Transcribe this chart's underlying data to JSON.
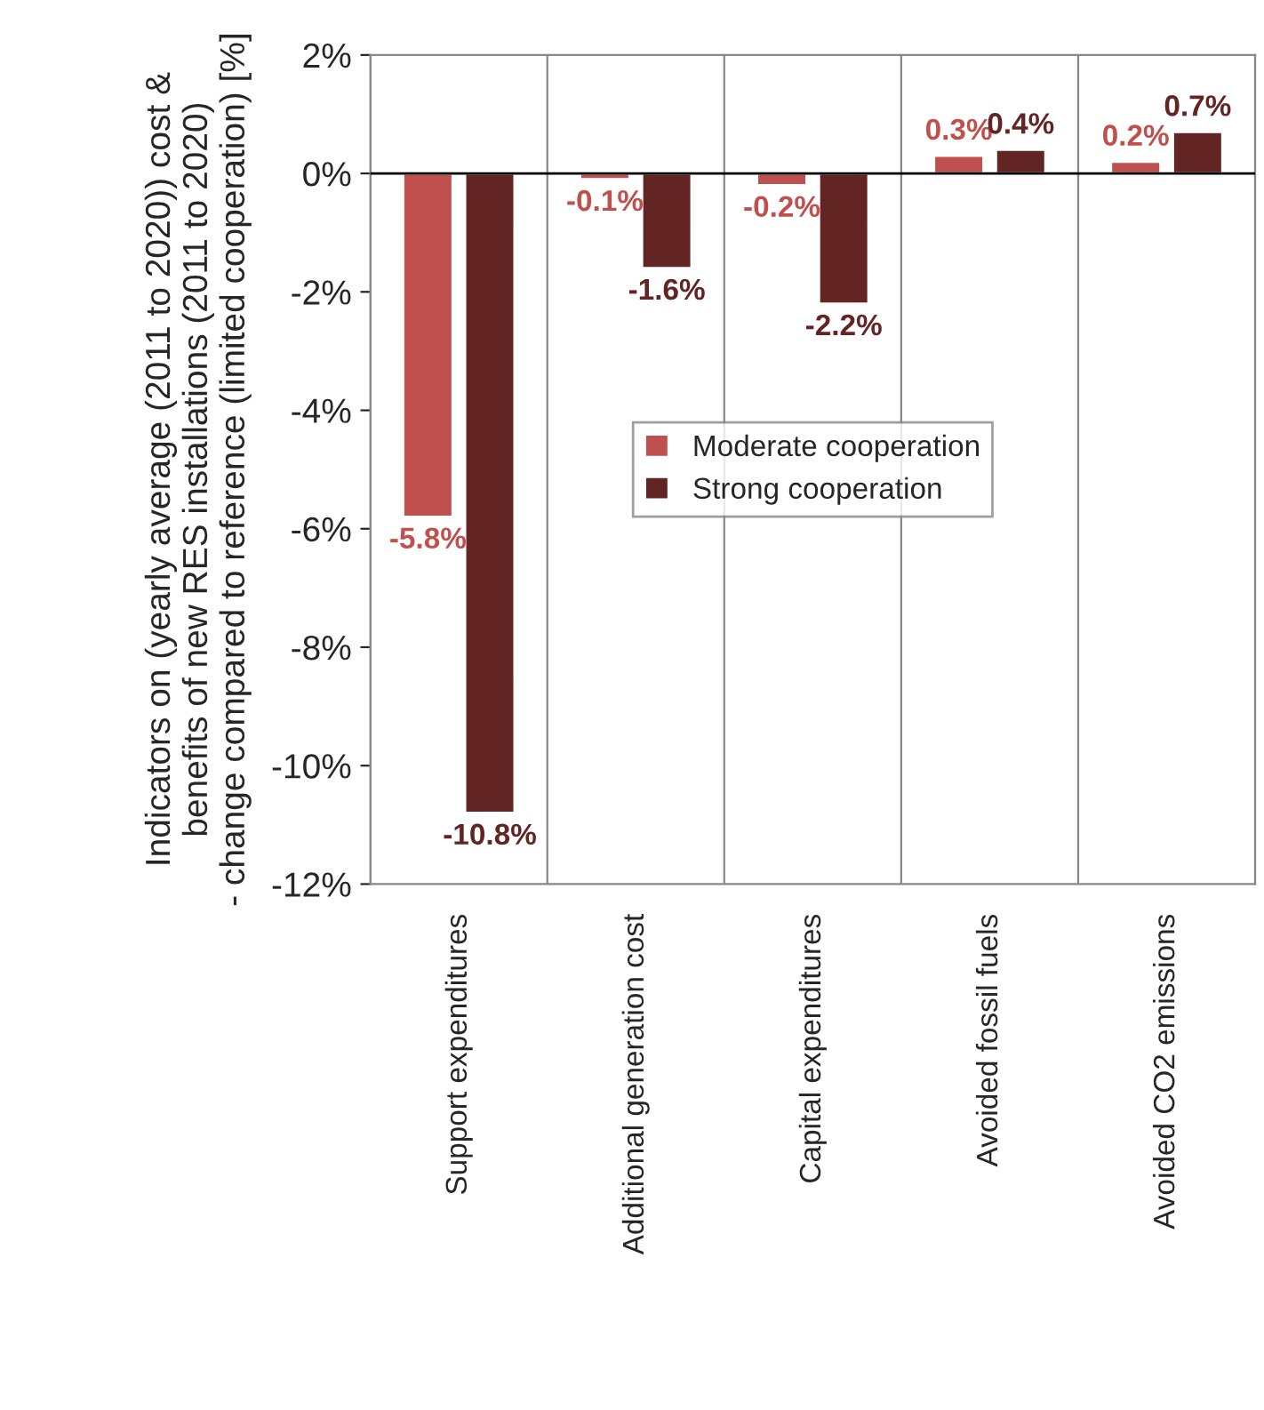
{
  "chart_data": {
    "type": "bar",
    "ylabel": "Indicators on (yearly average (2011 to 2020)) cost &\nbenefits of new RES installations (2011 to 2020)\n- change compared to reference (limited cooperation) [%]",
    "categories": [
      "Support expenditures",
      "Additional generation cost",
      "Capital expenditures",
      "Avoided fossil fuels",
      "Avoided CO2 emissions"
    ],
    "series": [
      {
        "name": "Moderate cooperation",
        "color": "#c0504d",
        "values": [
          -5.8,
          -0.1,
          -0.2,
          0.3,
          0.2
        ],
        "value_labels": [
          "-5.8%",
          "-0.1%",
          "-0.2%",
          "0.3%",
          "0.2%"
        ]
      },
      {
        "name": "Strong cooperation",
        "color": "#632523",
        "values": [
          -10.8,
          -1.6,
          -2.2,
          0.4,
          0.7
        ],
        "value_labels": [
          "-10.8%",
          "-1.6%",
          "-2.2%",
          "0.4%",
          "0.7%"
        ]
      }
    ],
    "ylim": [
      -12,
      2
    ],
    "yticks": [
      {
        "value": 2,
        "label": "2%"
      },
      {
        "value": 0,
        "label": "0%"
      },
      {
        "value": -2,
        "label": "-2%"
      },
      {
        "value": -4,
        "label": "-4%"
      },
      {
        "value": -6,
        "label": "-6%"
      },
      {
        "value": -8,
        "label": "-8%"
      },
      {
        "value": -10,
        "label": "-10%"
      },
      {
        "value": -12,
        "label": "-12%"
      }
    ],
    "grid": "x",
    "legend": "center"
  }
}
